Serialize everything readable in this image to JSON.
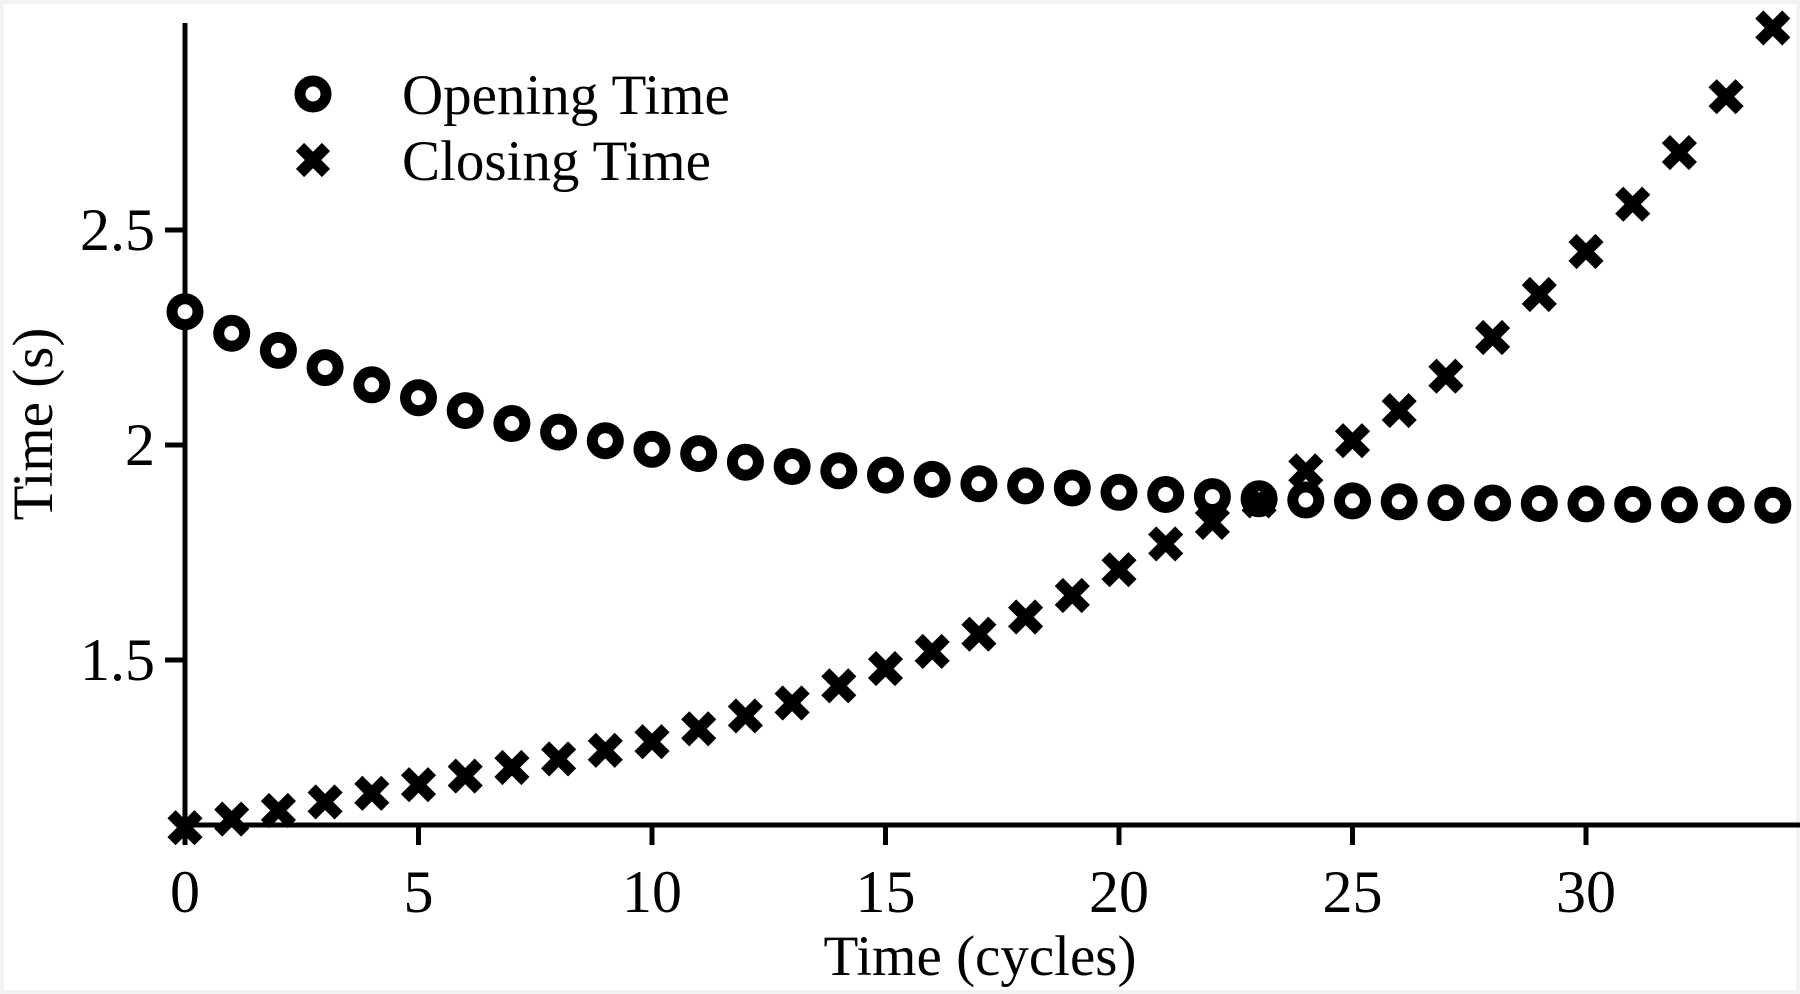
{
  "chart_data": {
    "type": "scatter",
    "title": "",
    "xlabel": "Time (cycles)",
    "ylabel": "Time (s)",
    "x_ticks": [
      0,
      5,
      10,
      15,
      20,
      25,
      30
    ],
    "y_ticks": [
      1.5,
      2,
      2.5
    ],
    "xlim": [
      0,
      34.6
    ],
    "ylim": [
      1.11,
      3.03
    ],
    "grid": false,
    "legend_position": "top-left",
    "marker_color": "#000000",
    "background_color": "#ffffff",
    "x": [
      0,
      1,
      2,
      3,
      4,
      5,
      6,
      7,
      8,
      9,
      10,
      11,
      12,
      13,
      14,
      15,
      16,
      17,
      18,
      19,
      20,
      21,
      22,
      23,
      24,
      25,
      26,
      27,
      28,
      29,
      30,
      31,
      32,
      33,
      34
    ],
    "series": [
      {
        "name": "Opening Time",
        "marker": "circle",
        "values": [
          2.31,
          2.26,
          2.22,
          2.18,
          2.14,
          2.11,
          2.08,
          2.05,
          2.03,
          2.01,
          1.99,
          1.98,
          1.96,
          1.95,
          1.94,
          1.93,
          1.92,
          1.91,
          1.905,
          1.9,
          1.89,
          1.885,
          1.88,
          1.875,
          1.872,
          1.87,
          1.868,
          1.866,
          1.865,
          1.864,
          1.863,
          1.862,
          1.861,
          1.861,
          1.86
        ]
      },
      {
        "name": "Closing Time",
        "marker": "x",
        "values": [
          1.11,
          1.13,
          1.15,
          1.17,
          1.19,
          1.21,
          1.23,
          1.25,
          1.27,
          1.29,
          1.31,
          1.34,
          1.37,
          1.4,
          1.44,
          1.48,
          1.52,
          1.56,
          1.6,
          1.65,
          1.71,
          1.77,
          1.82,
          1.87,
          1.94,
          2.01,
          2.08,
          2.16,
          2.25,
          2.35,
          2.45,
          2.56,
          2.68,
          2.81,
          2.97
        ]
      }
    ]
  }
}
